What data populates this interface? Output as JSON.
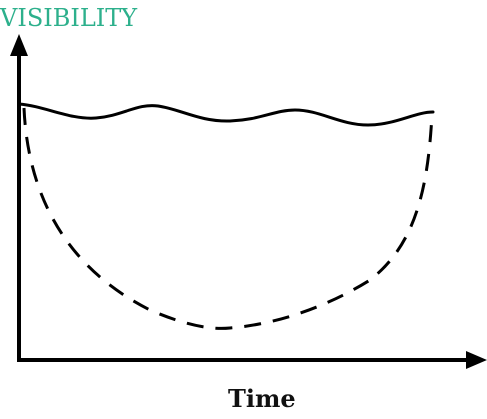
{
  "diagram": {
    "y_axis_label": "VISIBILITY",
    "x_axis_label": "Time",
    "colors": {
      "y_label": "#2db08c",
      "x_label": "#111111",
      "axes": "#000000",
      "solid_curve": "#000000",
      "dashed_curve": "#000000"
    },
    "curves": [
      {
        "style": "solid"
      },
      {
        "style": "dashed"
      }
    ]
  }
}
